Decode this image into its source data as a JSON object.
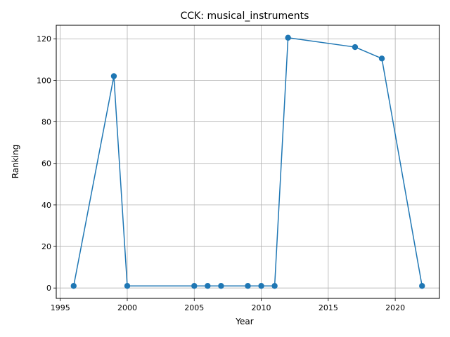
{
  "chart_data": {
    "type": "line",
    "title": "CCK: musical_instruments",
    "xlabel": "Year",
    "ylabel": "Ranking",
    "xlim": [
      1994.7,
      2023.3
    ],
    "ylim": [
      -5,
      126.5
    ],
    "xticks": [
      1995,
      2000,
      2005,
      2010,
      2015,
      2020
    ],
    "yticks": [
      0,
      20,
      40,
      60,
      80,
      100,
      120
    ],
    "grid": true,
    "series": [
      {
        "color": "#1f77b4",
        "marker": "circle",
        "x": [
          1996,
          1999,
          2000,
          2005,
          2006,
          2007,
          2009,
          2010,
          2011,
          2012,
          2017,
          2019,
          2022
        ],
        "y": [
          1,
          102,
          1,
          1,
          1,
          1,
          1,
          1,
          1,
          120.5,
          116,
          110.5,
          1
        ]
      }
    ]
  }
}
